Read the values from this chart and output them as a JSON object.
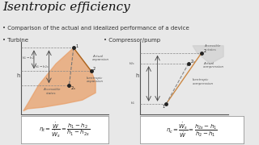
{
  "title": "Isentropic efficiency",
  "bullet1": "Comparison of the actual and idealized performance of a device",
  "bullet2_left": "Turbine",
  "bullet2_right": "Compressor/pump",
  "bg_color": "#e8e8e8",
  "formula_turbine": "$\\eta_t = \\dfrac{\\dot{W}}{\\dot{W}_s} = \\dfrac{h_1 - h_2}{h_1 - h_{2s}}$",
  "formula_compressor": "$\\eta_c = \\dfrac{\\dot{W}_s}{\\dot{W}} = \\dfrac{h_{2s} - h_1}{h_2 - h_1}$"
}
